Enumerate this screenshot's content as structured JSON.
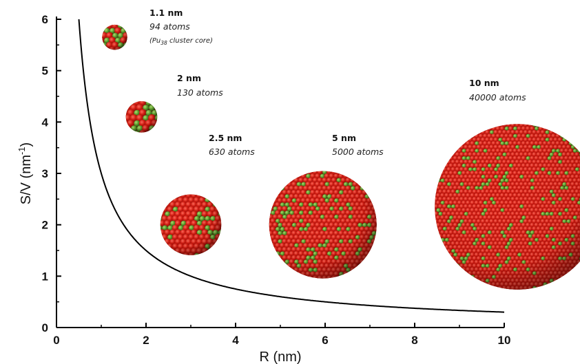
{
  "chart_data": {
    "type": "line",
    "title": "",
    "xlabel": "R (nm)",
    "ylabel_main": "S/V (nm",
    "ylabel_exp": "-1",
    "ylabel_close": ")",
    "xlim": [
      0,
      10
    ],
    "ylim": [
      0,
      6
    ],
    "x_ticks": [
      0,
      2,
      4,
      6,
      8,
      10
    ],
    "y_ticks": [
      0,
      1,
      2,
      3,
      4,
      5,
      6
    ],
    "grid": false,
    "series": [
      {
        "function": "S/V = 3/R",
        "x": [
          0.5,
          0.6,
          0.7,
          0.8,
          1.0,
          1.2,
          1.5,
          2.0,
          2.5,
          3.0,
          4.0,
          5.0,
          6.0,
          7.0,
          8.0,
          9.0,
          10.0
        ],
        "values": [
          6.0,
          5.0,
          4.29,
          3.75,
          3.0,
          2.5,
          2.0,
          1.5,
          1.2,
          1.0,
          0.75,
          0.6,
          0.5,
          0.43,
          0.375,
          0.333,
          0.3
        ],
        "color": "#000000"
      }
    ],
    "clusters": [
      {
        "size": "1.1 nm",
        "atoms": "94 atoms",
        "note_pre": "(Pu",
        "note_sub": "38",
        "note_post": " cluster core)",
        "cx": 1.3,
        "cy": 5.65,
        "radius_r": 0.28
      },
      {
        "size": "2 nm",
        "atoms": "130 atoms",
        "cx": 1.9,
        "cy": 4.1,
        "radius_r": 0.35
      },
      {
        "size": "2.5 nm",
        "atoms": "630 atoms",
        "cx": 3.0,
        "cy": 2.0,
        "radius_r": 0.68
      },
      {
        "size": "5 nm",
        "atoms": "5000 atoms",
        "cx": 5.95,
        "cy": 2.0,
        "radius_r": 1.2
      },
      {
        "size": "10 nm",
        "atoms": "40000 atoms",
        "cx": 10.3,
        "cy": 2.35,
        "radius_r": 1.85
      }
    ],
    "colors": {
      "atom_red": "#cc1a10",
      "atom_green": "#5a9a2a",
      "curve": "#000000",
      "axis": "#000000"
    }
  }
}
